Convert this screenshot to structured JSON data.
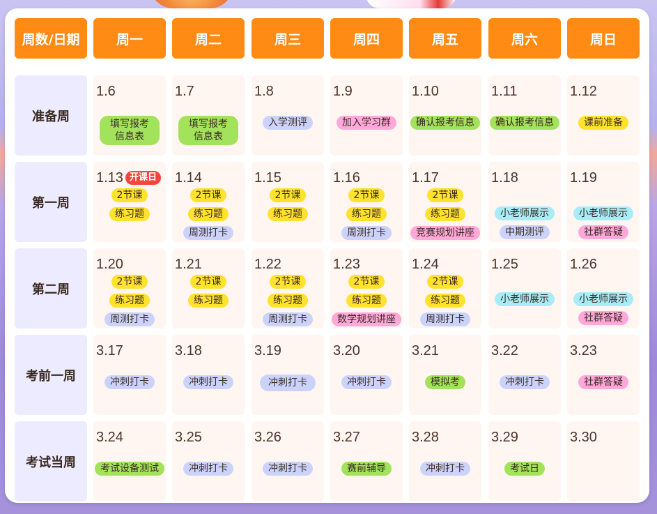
{
  "header": {
    "corner": "周数/日期",
    "days": [
      "周一",
      "周二",
      "周三",
      "周四",
      "周五",
      "周六",
      "周日"
    ]
  },
  "colors": {
    "header_bg": "#ff8a14",
    "row_label_bg": "#ecebff",
    "cell_bg": "#fff6f2",
    "tag_yellow": "#ffe22e",
    "tag_green": "#a3e25b",
    "tag_blue": "#ccd3fb",
    "tag_pink": "#ffa8d9",
    "tag_cyan": "#a8ecf7",
    "badge_red": "#f2453d"
  },
  "rows": [
    {
      "label": "准备周",
      "cells": [
        {
          "date": "1.6",
          "tags": [
            {
              "text": "填写报考信息表",
              "color": "green",
              "wrap": true
            }
          ]
        },
        {
          "date": "1.7",
          "tags": [
            {
              "text": "填写报考信息表",
              "color": "green",
              "wrap": true
            }
          ]
        },
        {
          "date": "1.8",
          "tags": [
            {
              "text": "入学测评",
              "color": "blue"
            }
          ]
        },
        {
          "date": "1.9",
          "tags": [
            {
              "text": "加入学习群",
              "color": "pink"
            }
          ]
        },
        {
          "date": "1.10",
          "tags": [
            {
              "text": "确认报考信息",
              "color": "green"
            }
          ]
        },
        {
          "date": "1.11",
          "tags": [
            {
              "text": "确认报考信息",
              "color": "green"
            }
          ]
        },
        {
          "date": "1.12",
          "tags": [
            {
              "text": "课前准备",
              "color": "yellow"
            }
          ]
        }
      ]
    },
    {
      "label": "第一周",
      "cells": [
        {
          "date": "1.13",
          "badge": "开课日",
          "tags": [
            {
              "text": "2节课",
              "color": "yellow"
            },
            {
              "text": "练习题",
              "color": "yellow"
            }
          ]
        },
        {
          "date": "1.14",
          "tags": [
            {
              "text": "2节课",
              "color": "yellow"
            },
            {
              "text": "练习题",
              "color": "yellow"
            },
            {
              "text": "周测打卡",
              "color": "blue"
            }
          ]
        },
        {
          "date": "1.15",
          "tags": [
            {
              "text": "2节课",
              "color": "yellow"
            },
            {
              "text": "练习题",
              "color": "yellow"
            }
          ]
        },
        {
          "date": "1.16",
          "tags": [
            {
              "text": "2节课",
              "color": "yellow"
            },
            {
              "text": "练习题",
              "color": "yellow"
            },
            {
              "text": "周测打卡",
              "color": "blue"
            }
          ]
        },
        {
          "date": "1.17",
          "tags": [
            {
              "text": "2节课",
              "color": "yellow"
            },
            {
              "text": "练习题",
              "color": "yellow"
            },
            {
              "text": "竞赛规划讲座",
              "color": "pink"
            }
          ]
        },
        {
          "date": "1.18",
          "tags": [
            {
              "text": "小老师展示",
              "color": "cyan"
            },
            {
              "text": "中期测评",
              "color": "blue"
            }
          ],
          "offset": "lower"
        },
        {
          "date": "1.19",
          "tags": [
            {
              "text": "小老师展示",
              "color": "cyan"
            },
            {
              "text": "社群答疑",
              "color": "pink"
            }
          ],
          "offset": "lower"
        }
      ]
    },
    {
      "label": "第二周",
      "cells": [
        {
          "date": "1.20",
          "tags": [
            {
              "text": "2节课",
              "color": "yellow"
            },
            {
              "text": "练习题",
              "color": "yellow"
            },
            {
              "text": "周测打卡",
              "color": "blue"
            }
          ]
        },
        {
          "date": "1.21",
          "tags": [
            {
              "text": "2节课",
              "color": "yellow"
            },
            {
              "text": "练习题",
              "color": "yellow"
            }
          ]
        },
        {
          "date": "1.22",
          "tags": [
            {
              "text": "2节课",
              "color": "yellow"
            },
            {
              "text": "练习题",
              "color": "yellow"
            },
            {
              "text": "周测打卡",
              "color": "blue"
            }
          ]
        },
        {
          "date": "1.23",
          "tags": [
            {
              "text": "2节课",
              "color": "yellow"
            },
            {
              "text": "练习题",
              "color": "yellow"
            },
            {
              "text": "数学规划讲座",
              "color": "pink"
            }
          ]
        },
        {
          "date": "1.24",
          "tags": [
            {
              "text": "2节课",
              "color": "yellow"
            },
            {
              "text": "练习题",
              "color": "yellow"
            },
            {
              "text": "周测打卡",
              "color": "blue"
            }
          ]
        },
        {
          "date": "1.25",
          "tags": [
            {
              "text": "小老师展示",
              "color": "cyan"
            }
          ],
          "offset": "mid"
        },
        {
          "date": "1.26",
          "tags": [
            {
              "text": "小老师展示",
              "color": "cyan"
            },
            {
              "text": "社群答疑",
              "color": "pink"
            }
          ],
          "offset": "mid"
        }
      ]
    },
    {
      "label": "考前一周",
      "cells": [
        {
          "date": "3.17",
          "tags": [
            {
              "text": "冲刺打卡",
              "color": "blue"
            }
          ]
        },
        {
          "date": "3.18",
          "tags": [
            {
              "text": "冲刺打卡",
              "color": "blue"
            }
          ]
        },
        {
          "date": "3.19",
          "tags": [
            {
              "text": "冲刺打卡",
              "color": "blue",
              "wrap": true
            }
          ]
        },
        {
          "date": "3.20",
          "tags": [
            {
              "text": "冲刺打卡",
              "color": "blue"
            }
          ]
        },
        {
          "date": "3.21",
          "tags": [
            {
              "text": "模拟考",
              "color": "green"
            }
          ]
        },
        {
          "date": "3.22",
          "tags": [
            {
              "text": "冲刺打卡",
              "color": "blue"
            }
          ]
        },
        {
          "date": "3.23",
          "tags": [
            {
              "text": "社群答疑",
              "color": "pink"
            }
          ]
        }
      ]
    },
    {
      "label": "考试当周",
      "cells": [
        {
          "date": "3.24",
          "tags": [
            {
              "text": "考试设备测试",
              "color": "green"
            }
          ]
        },
        {
          "date": "3.25",
          "tags": [
            {
              "text": "冲刺打卡",
              "color": "blue"
            }
          ]
        },
        {
          "date": "3.26",
          "tags": [
            {
              "text": "冲刺打卡",
              "color": "blue"
            }
          ]
        },
        {
          "date": "3.27",
          "tags": [
            {
              "text": "赛前辅导",
              "color": "green"
            }
          ]
        },
        {
          "date": "3.28",
          "tags": [
            {
              "text": "冲刺打卡",
              "color": "blue"
            }
          ]
        },
        {
          "date": "3.29",
          "tags": [
            {
              "text": "考试日",
              "color": "green"
            }
          ]
        },
        {
          "date": "3.30",
          "tags": []
        }
      ]
    }
  ]
}
